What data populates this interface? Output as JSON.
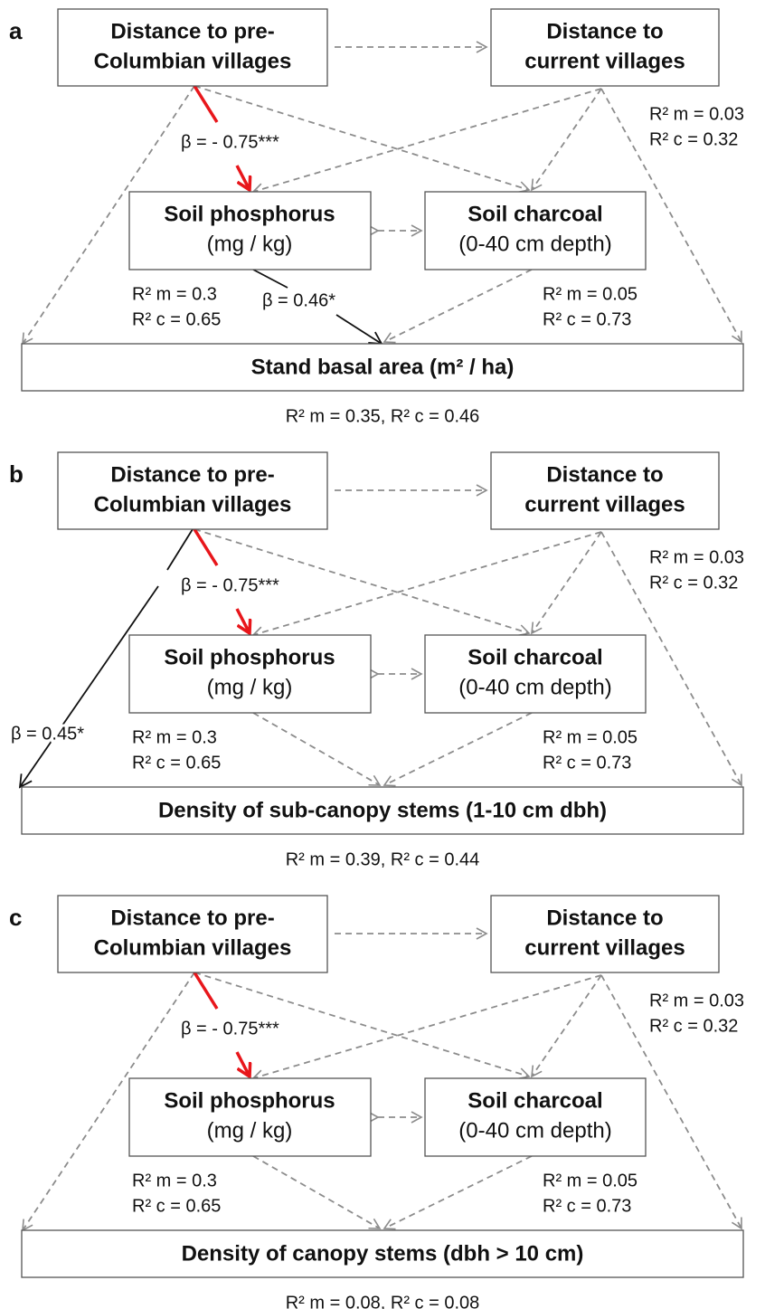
{
  "panels": [
    {
      "label": "a",
      "pre_columbian": [
        "Distance to pre-",
        "Columbian villages"
      ],
      "current": [
        "Distance to",
        "current villages"
      ],
      "current_r2": [
        "R² m = 0.03",
        "R² c = 0.32"
      ],
      "phosphorus": [
        "Soil phosphorus",
        "(mg / kg)"
      ],
      "phosphorus_r2": [
        "R² m = 0.3",
        "R² c = 0.65"
      ],
      "charcoal": [
        "Soil charcoal",
        "(0-40 cm depth)"
      ],
      "charcoal_r2": [
        "R² m = 0.05",
        "R² c = 0.73"
      ],
      "response": "Stand basal area (m² / ha)",
      "response_r2": "R² m = 0.35, R² c = 0.46",
      "effects": [
        "β  = - 0.75***",
        "β  = 0.46*"
      ]
    },
    {
      "label": "b",
      "pre_columbian": [
        "Distance to pre-",
        "Columbian villages"
      ],
      "current": [
        "Distance to",
        "current villages"
      ],
      "current_r2": [
        "R² m = 0.03",
        "R² c = 0.32"
      ],
      "phosphorus": [
        "Soil phosphorus",
        "(mg / kg)"
      ],
      "phosphorus_r2": [
        "R² m = 0.3",
        "R² c = 0.65"
      ],
      "charcoal": [
        "Soil charcoal",
        "(0-40 cm depth)"
      ],
      "charcoal_r2": [
        "R² m = 0.05",
        "R² c = 0.73"
      ],
      "response": "Density of sub-canopy stems (1-10 cm dbh)",
      "response_r2": "R² m = 0.39, R² c = 0.44",
      "effects": [
        "β  = - 0.75***",
        "β  = 0.45*"
      ]
    },
    {
      "label": "c",
      "pre_columbian": [
        "Distance to pre-",
        "Columbian villages"
      ],
      "current": [
        "Distance to",
        "current villages"
      ],
      "current_r2": [
        "R² m = 0.03",
        "R² c = 0.32"
      ],
      "phosphorus": [
        "Soil phosphorus",
        "(mg / kg)"
      ],
      "phosphorus_r2": [
        "R² m = 0.3",
        "R² c = 0.65"
      ],
      "charcoal": [
        "Soil charcoal",
        "(0-40 cm depth)"
      ],
      "charcoal_r2": [
        "R² m = 0.05",
        "R² c = 0.73"
      ],
      "response": "Density of canopy stems (dbh > 10 cm)",
      "response_r2": "R² m = 0.08, R² c = 0.08",
      "effects": [
        "β  = - 0.75***"
      ]
    }
  ]
}
